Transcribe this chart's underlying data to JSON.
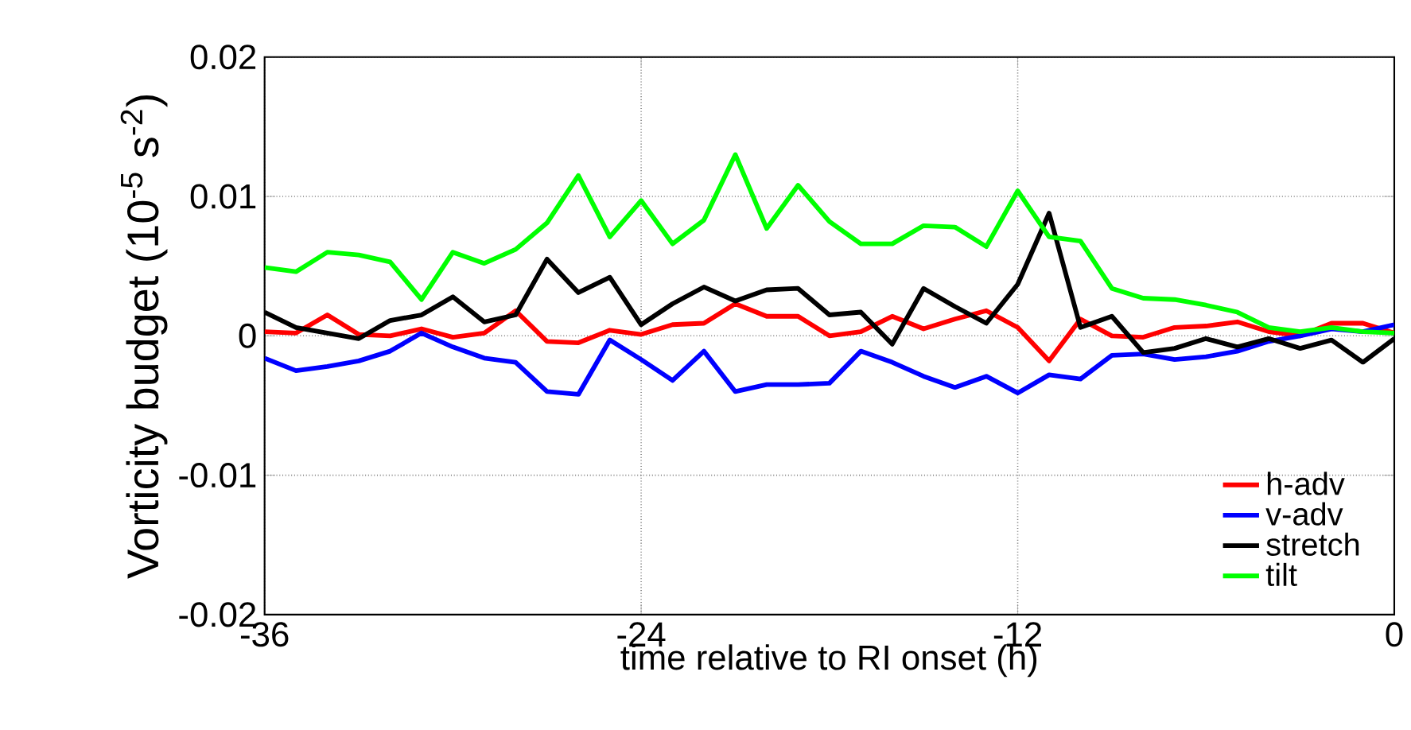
{
  "chart_data": {
    "type": "line",
    "xlabel": "time relative to RI onset (h)",
    "ylabel": "Vorticity budget (10$^{-5}$ s$^{-2}$)",
    "x": [
      -36,
      -35,
      -34,
      -33,
      -32,
      -31,
      -30,
      -29,
      -28,
      -27,
      -26,
      -25,
      -24,
      -23,
      -22,
      -21,
      -20,
      -19,
      -18,
      -17,
      -16,
      -15,
      -14,
      -13,
      -12,
      -11,
      -10,
      -9,
      -8,
      -7,
      -6,
      -5,
      -4,
      -3,
      -2,
      -1,
      0
    ],
    "series": [
      {
        "name": "h-adv",
        "color": "#ff0000",
        "values": [
          0.0003,
          0.0002,
          0.0015,
          0.0001,
          0.0,
          0.0005,
          -0.0001,
          0.0002,
          0.0018,
          -0.0004,
          -0.0005,
          0.0004,
          0.0001,
          0.0008,
          0.0009,
          0.0023,
          0.0014,
          0.0014,
          0.0,
          0.0003,
          0.0014,
          0.0005,
          0.0012,
          0.0018,
          0.0006,
          -0.0018,
          0.0012,
          0.0,
          -0.0001,
          0.0006,
          0.0007,
          0.001,
          0.0003,
          0.0,
          0.0009,
          0.0009,
          0.0002
        ]
      },
      {
        "name": "v-adv",
        "color": "#0000ff",
        "values": [
          -0.0016,
          -0.0025,
          -0.0022,
          -0.0018,
          -0.0011,
          0.0002,
          -0.0008,
          -0.0016,
          -0.0019,
          -0.004,
          -0.0042,
          -0.0003,
          -0.0017,
          -0.0032,
          -0.0011,
          -0.004,
          -0.0035,
          -0.0035,
          -0.0034,
          -0.0011,
          -0.0019,
          -0.0029,
          -0.0037,
          -0.0029,
          -0.0041,
          -0.0028,
          -0.0031,
          -0.0014,
          -0.0013,
          -0.0017,
          -0.0015,
          -0.0011,
          -0.0004,
          0.0,
          0.0005,
          0.0003,
          0.0008
        ]
      },
      {
        "name": "stretch",
        "color": "#000000",
        "values": [
          0.0017,
          0.0006,
          0.0002,
          -0.0002,
          0.0011,
          0.0015,
          0.0028,
          0.001,
          0.0015,
          0.0055,
          0.0031,
          0.0042,
          0.0008,
          0.0023,
          0.0035,
          0.0025,
          0.0033,
          0.0034,
          0.0015,
          0.0017,
          -0.0006,
          0.0034,
          0.0021,
          0.0009,
          0.0037,
          0.0088,
          0.0006,
          0.0014,
          -0.0012,
          -0.0009,
          -0.0002,
          -0.0008,
          -0.0002,
          -0.0009,
          -0.0003,
          -0.0019,
          -0.0002
        ]
      },
      {
        "name": "tilt",
        "color": "#00ff00",
        "values": [
          0.0049,
          0.0046,
          0.006,
          0.0058,
          0.0053,
          0.0026,
          0.006,
          0.0052,
          0.0062,
          0.0081,
          0.0115,
          0.0071,
          0.0097,
          0.0066,
          0.0083,
          0.013,
          0.0077,
          0.0108,
          0.0082,
          0.0066,
          0.0066,
          0.0079,
          0.0078,
          0.0064,
          0.0104,
          0.0071,
          0.0068,
          0.0034,
          0.0027,
          0.0026,
          0.0022,
          0.0017,
          0.0006,
          0.0003,
          0.0006,
          0.0003,
          0.0002
        ]
      }
    ],
    "xlim": [
      -36,
      0
    ],
    "xticks": [
      -36,
      -24,
      -12,
      0
    ],
    "ylim": [
      -0.02,
      0.02
    ],
    "yticks": [
      -0.02,
      -0.01,
      0,
      0.01,
      0.02
    ],
    "grid": true,
    "legend": "bottom right",
    "marker": "none",
    "line_style": "solid"
  }
}
